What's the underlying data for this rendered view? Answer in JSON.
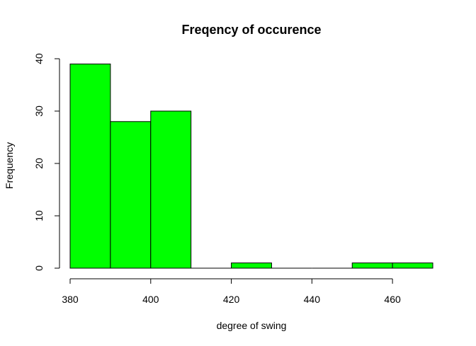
{
  "chart_data": {
    "type": "bar",
    "subtype": "histogram",
    "title": "Freqency of occurence",
    "xlabel": "degree of swing",
    "ylabel": "Frequency",
    "bins": [
      {
        "from": 380,
        "to": 390,
        "count": 39
      },
      {
        "from": 390,
        "to": 400,
        "count": 28
      },
      {
        "from": 400,
        "to": 410,
        "count": 30
      },
      {
        "from": 410,
        "to": 420,
        "count": 0
      },
      {
        "from": 420,
        "to": 430,
        "count": 1
      },
      {
        "from": 430,
        "to": 440,
        "count": 0
      },
      {
        "from": 440,
        "to": 450,
        "count": 0
      },
      {
        "from": 450,
        "to": 460,
        "count": 1
      },
      {
        "from": 460,
        "to": 470,
        "count": 1
      }
    ],
    "xlim": [
      380,
      470
    ],
    "ylim": [
      0,
      40
    ],
    "x_ticks": [
      380,
      400,
      420,
      440,
      460
    ],
    "y_ticks": [
      0,
      10,
      20,
      30,
      40
    ],
    "bar_color": "#00ff00",
    "grid": false
  }
}
